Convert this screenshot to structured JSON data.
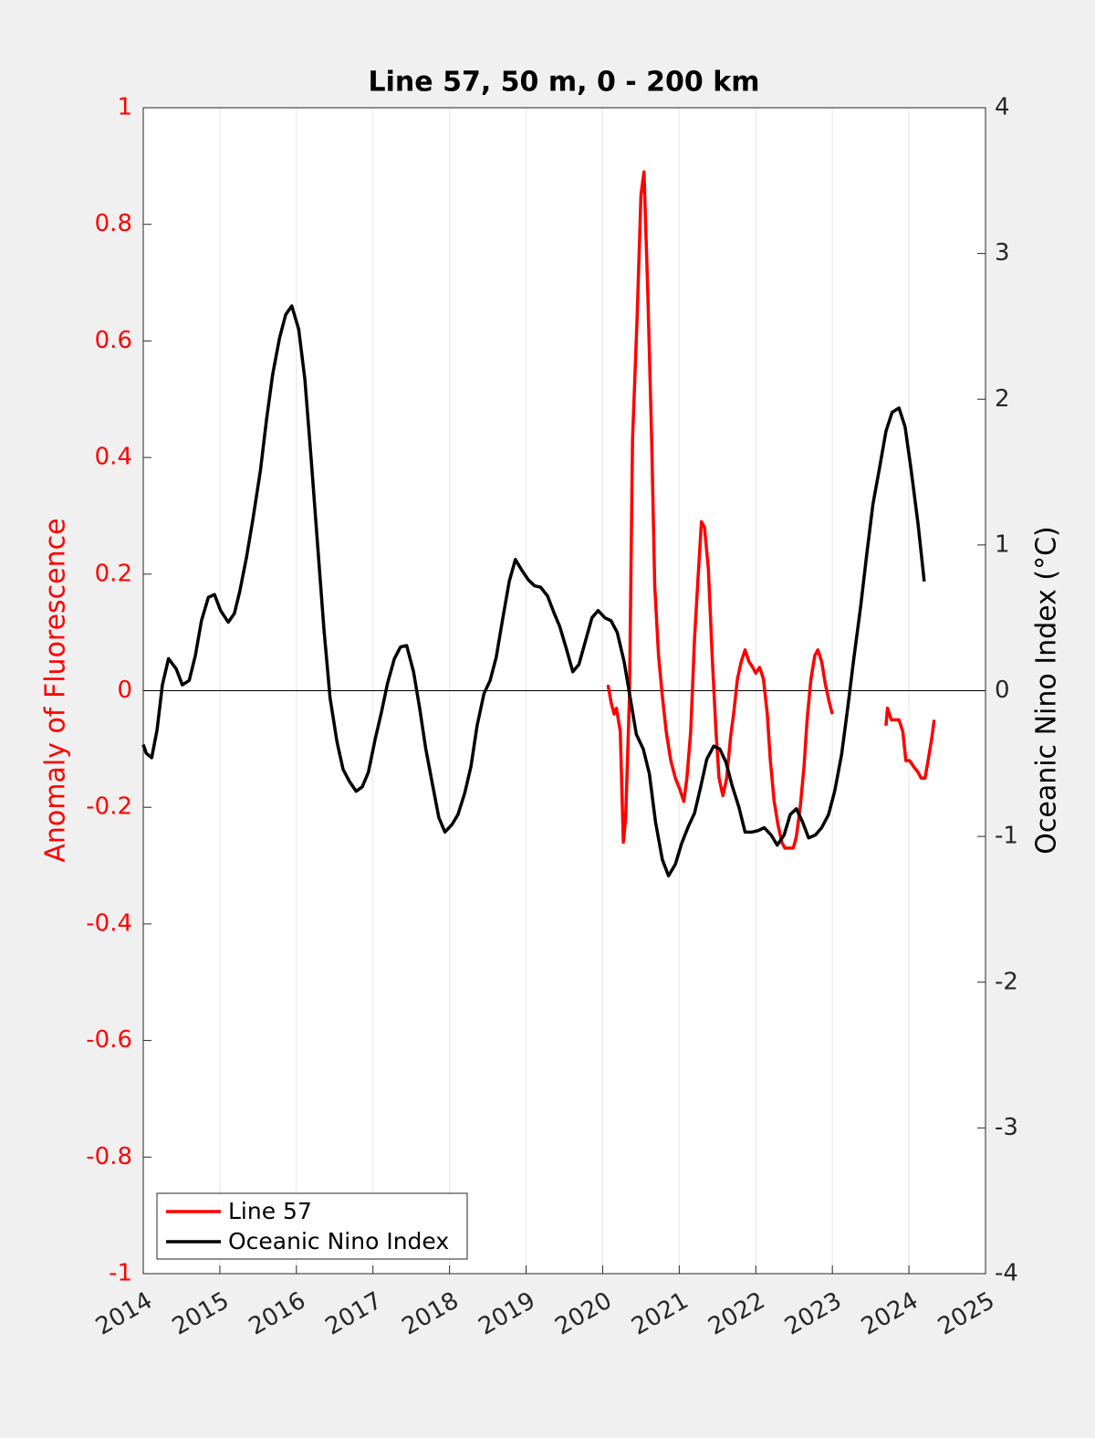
{
  "chart_data": {
    "type": "line",
    "title": "Line 57, 50 m, 0 - 200 km",
    "ylabel": "Anomaly of Fluorescence",
    "y2label": "Oceanic Nino Index (°C)",
    "xlim": [
      2014,
      2025
    ],
    "xticks": [
      2014,
      2015,
      2016,
      2017,
      2018,
      2019,
      2020,
      2021,
      2022,
      2023,
      2024,
      2025
    ],
    "ylim": [
      -1,
      1
    ],
    "yticks": [
      -1,
      -0.8,
      -0.6,
      -0.4,
      -0.2,
      0,
      0.2,
      0.4,
      0.6,
      0.8,
      1
    ],
    "y2lim": [
      -4,
      4
    ],
    "y2ticks": [
      -4,
      -3,
      -2,
      -1,
      0,
      1,
      2,
      3,
      4
    ],
    "ylabel_color": "#ff0000",
    "hline": 0,
    "xgrid": true,
    "legend": "lower left",
    "series": [
      {
        "name": "Line 57",
        "color": "#ff0000",
        "axis": "y",
        "x": [
          2020.07,
          2020.11,
          2020.15,
          2020.18,
          2020.23,
          2020.27,
          2020.3,
          2020.35,
          2020.39,
          2020.45,
          2020.5,
          2020.54,
          2020.59,
          2020.64,
          2020.68,
          2020.73,
          2020.78,
          2020.83,
          2020.89,
          2020.95,
          2021.01,
          2021.06,
          2021.1,
          2021.15,
          2021.2,
          2021.24,
          2021.29,
          2021.33,
          2021.38,
          2021.43,
          2021.48,
          2021.52,
          2021.57,
          2021.62,
          2021.67,
          2021.71,
          2021.76,
          2021.81,
          2021.86,
          2021.91,
          2021.96,
          2022.0,
          2022.05,
          2022.1,
          2022.15,
          2022.19,
          2022.24,
          2022.29,
          2022.34,
          2022.38,
          2022.44,
          2022.49,
          2022.53,
          2022.58,
          2022.63,
          2022.67,
          2022.72,
          2022.77,
          2022.81,
          2022.86,
          2022.91,
          2022.96,
          2023.0,
          null,
          2023.7,
          2023.72,
          2023.77,
          2023.82,
          2023.87,
          2023.92,
          2023.96,
          2024.01,
          2024.06,
          2024.12,
          2024.16,
          2024.21,
          2024.25,
          2024.3,
          2024.33
        ],
        "values": [
          0.01,
          -0.02,
          -0.04,
          -0.03,
          -0.07,
          -0.26,
          -0.22,
          -0.01,
          0.43,
          0.64,
          0.85,
          0.89,
          0.68,
          0.43,
          0.18,
          0.06,
          -0.01,
          -0.07,
          -0.12,
          -0.15,
          -0.17,
          -0.19,
          -0.15,
          -0.07,
          0.09,
          0.18,
          0.29,
          0.28,
          0.21,
          0.06,
          -0.07,
          -0.15,
          -0.18,
          -0.15,
          -0.08,
          -0.04,
          0.02,
          0.05,
          0.07,
          0.05,
          0.04,
          0.03,
          0.04,
          0.02,
          -0.04,
          -0.12,
          -0.19,
          -0.23,
          -0.26,
          -0.27,
          -0.27,
          -0.27,
          -0.25,
          -0.2,
          -0.13,
          -0.05,
          0.02,
          0.06,
          0.07,
          0.05,
          0.01,
          -0.02,
          -0.04,
          null,
          -0.06,
          -0.03,
          -0.05,
          -0.05,
          -0.05,
          -0.07,
          -0.12,
          -0.12,
          -0.13,
          -0.14,
          -0.15,
          -0.15,
          -0.12,
          -0.08,
          -0.05
        ]
      },
      {
        "name": "Oceanic Nino Index",
        "color": "#000000",
        "axis": "y2",
        "x": [
          2014.0,
          2014.04,
          2014.11,
          2014.18,
          2014.25,
          2014.33,
          2014.43,
          2014.51,
          2014.6,
          2014.68,
          2014.76,
          2014.85,
          2014.93,
          2015.01,
          2015.11,
          2015.19,
          2015.26,
          2015.35,
          2015.43,
          2015.53,
          2015.61,
          2015.69,
          2015.78,
          2015.86,
          2015.94,
          2016.03,
          2016.11,
          2016.19,
          2016.28,
          2016.36,
          2016.44,
          2016.53,
          2016.61,
          2016.69,
          2016.78,
          2016.86,
          2016.94,
          2017.03,
          2017.11,
          2017.19,
          2017.28,
          2017.36,
          2017.44,
          2017.53,
          2017.61,
          2017.69,
          2017.78,
          2017.86,
          2017.94,
          2018.03,
          2018.11,
          2018.2,
          2018.28,
          2018.36,
          2018.45,
          2018.53,
          2018.61,
          2018.69,
          2018.78,
          2018.86,
          2018.94,
          2019.03,
          2019.11,
          2019.19,
          2019.28,
          2019.36,
          2019.44,
          2019.53,
          2019.61,
          2019.69,
          2019.78,
          2019.86,
          2019.94,
          2020.03,
          2020.11,
          2020.19,
          2020.28,
          2020.36,
          2020.44,
          2020.53,
          2020.61,
          2020.69,
          2020.78,
          2020.86,
          2020.95,
          2021.03,
          2021.12,
          2021.2,
          2021.28,
          2021.36,
          2021.45,
          2021.53,
          2021.61,
          2021.69,
          2021.78,
          2021.86,
          2021.95,
          2022.03,
          2022.11,
          2022.2,
          2022.28,
          2022.37,
          2022.45,
          2022.53,
          2022.61,
          2022.69,
          2022.78,
          2022.86,
          2022.95,
          2023.03,
          2023.12,
          2023.2,
          2023.28,
          2023.37,
          2023.45,
          2023.53,
          2023.62,
          2023.7,
          2023.78,
          2023.87,
          2023.95,
          2024.03,
          2024.12,
          2024.2
        ],
        "values": [
          -0.37,
          -0.43,
          -0.46,
          -0.27,
          0.04,
          0.22,
          0.15,
          0.04,
          0.07,
          0.24,
          0.48,
          0.64,
          0.66,
          0.55,
          0.47,
          0.53,
          0.68,
          0.92,
          1.17,
          1.51,
          1.86,
          2.17,
          2.42,
          2.58,
          2.64,
          2.48,
          2.14,
          1.61,
          0.98,
          0.42,
          -0.05,
          -0.35,
          -0.54,
          -0.62,
          -0.69,
          -0.66,
          -0.56,
          -0.33,
          -0.15,
          0.05,
          0.22,
          0.3,
          0.31,
          0.13,
          -0.12,
          -0.4,
          -0.65,
          -0.87,
          -0.97,
          -0.92,
          -0.85,
          -0.7,
          -0.52,
          -0.24,
          -0.02,
          0.07,
          0.23,
          0.48,
          0.75,
          0.9,
          0.83,
          0.76,
          0.72,
          0.71,
          0.65,
          0.54,
          0.44,
          0.28,
          0.13,
          0.18,
          0.35,
          0.5,
          0.55,
          0.5,
          0.48,
          0.4,
          0.2,
          -0.05,
          -0.3,
          -0.4,
          -0.57,
          -0.9,
          -1.16,
          -1.27,
          -1.19,
          -1.05,
          -0.93,
          -0.84,
          -0.66,
          -0.47,
          -0.38,
          -0.4,
          -0.49,
          -0.65,
          -0.8,
          -0.97,
          -0.97,
          -0.96,
          -0.94,
          -0.99,
          -1.06,
          -0.99,
          -0.85,
          -0.81,
          -0.9,
          -1.01,
          -0.99,
          -0.94,
          -0.85,
          -0.69,
          -0.44,
          -0.12,
          0.22,
          0.58,
          0.94,
          1.28,
          1.54,
          1.78,
          1.91,
          1.94,
          1.81,
          1.51,
          1.14,
          0.75
        ]
      }
    ]
  }
}
